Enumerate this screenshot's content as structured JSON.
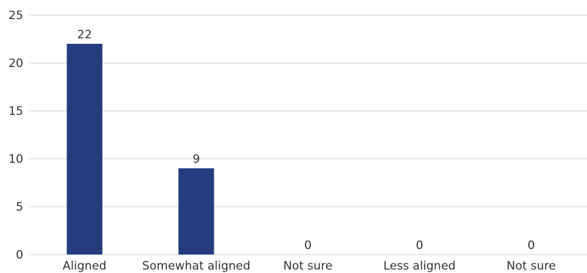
{
  "chart_data": {
    "type": "bar",
    "categories": [
      "Aligned",
      "Somewhat aligned",
      "Not sure",
      "Less aligned",
      "Not sure"
    ],
    "values": [
      22,
      9,
      0,
      0,
      0
    ],
    "data_labels": [
      "22",
      "9",
      "0",
      "0",
      "0"
    ],
    "ylim": [
      0,
      25
    ],
    "yticks": [
      0,
      5,
      10,
      15,
      20,
      25
    ],
    "grid": true,
    "legend": "none",
    "colors": {
      "bar": "#253d7f",
      "grid": "#d0d0d0",
      "text": "#333333"
    }
  }
}
